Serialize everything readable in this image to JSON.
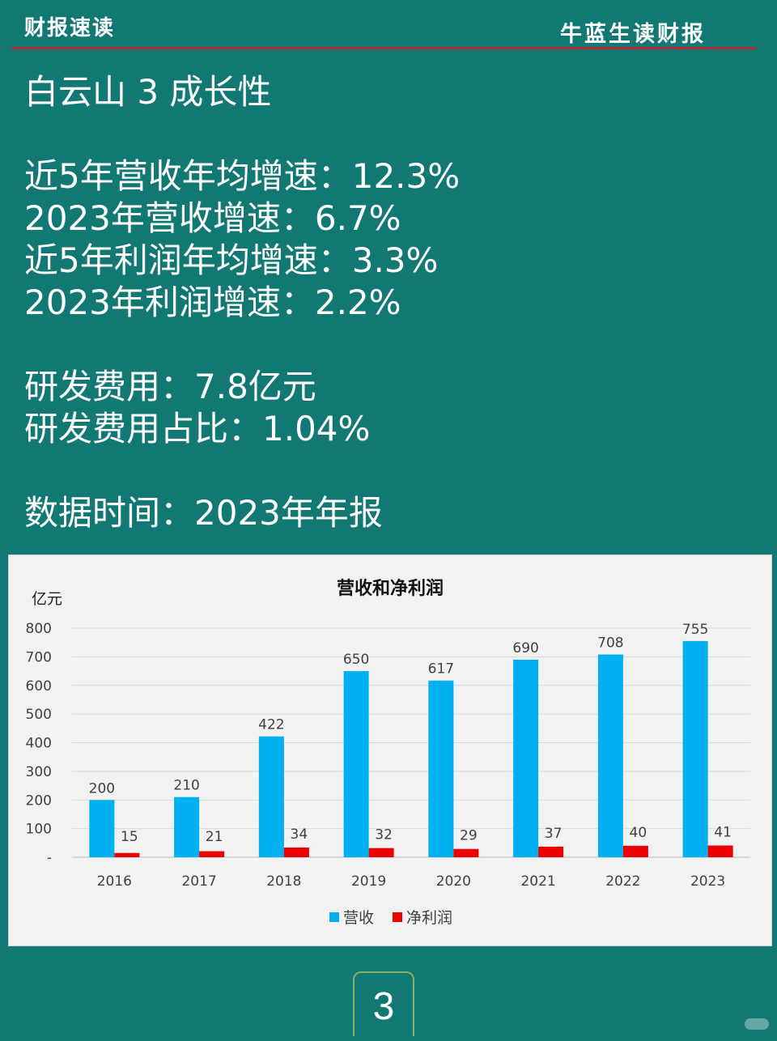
{
  "header": {
    "left_title": "财报速读",
    "right_title": "牛蓝生读财报"
  },
  "body": {
    "heading": "白云山 3 成长性",
    "lines": [
      "近5年营收年均增速：12.3%",
      "2023年营收增速：6.7%",
      "近5年利润年均增速：3.3%",
      "2023年利润增速：2.2%"
    ],
    "rd_lines": [
      "研发费用：7.8亿元",
      "研发费用占比：1.04%"
    ],
    "data_time": "数据时间：2023年年报"
  },
  "chart_data": {
    "type": "bar",
    "title": "营收和净利润",
    "unit_label": "亿元",
    "categories": [
      "2016",
      "2017",
      "2018",
      "2019",
      "2020",
      "2021",
      "2022",
      "2023"
    ],
    "series": [
      {
        "name": "营收",
        "color": "#00b0f0",
        "values": [
          200,
          210,
          422,
          650,
          617,
          690,
          708,
          755
        ]
      },
      {
        "name": "净利润",
        "color": "#ee0000",
        "values": [
          15,
          21,
          34,
          32,
          29,
          37,
          40,
          41
        ]
      }
    ],
    "yticks": [
      "-",
      "100",
      "200",
      "300",
      "400",
      "500",
      "600",
      "700",
      "800"
    ],
    "ylim": [
      0,
      800
    ],
    "grid": true,
    "legend": "bottom"
  },
  "page_number": "3"
}
